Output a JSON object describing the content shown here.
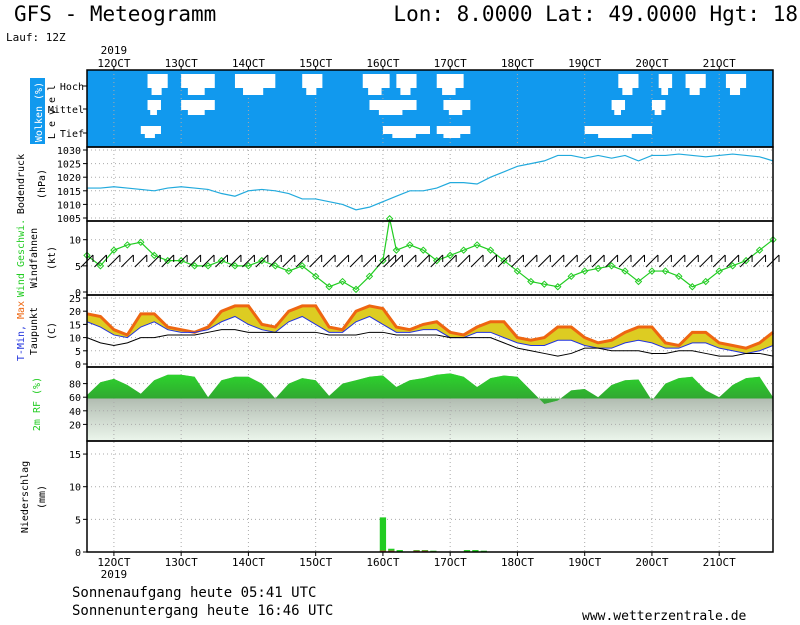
{
  "header": {
    "title": "GFS - Meteogramm",
    "coords": "Lon: 8.0000 Lat: 49.0000 Hgt: 18",
    "run": "Lauf: 12Z"
  },
  "footer": {
    "sunrise": "Sonnenaufgang heute 05:41 UTC",
    "sunset": "Sonnenuntergang heute 16:46 UTC",
    "site": "www.wetterzentrale.de"
  },
  "colors": {
    "cloud_bg": "#1199ee",
    "pressure": "#22aadd",
    "wind": "#22cc22",
    "temp_max": "#ee6611",
    "temp_fill": "#ddcc22",
    "temp_min": "#2233dd",
    "humidity": "#22cc22",
    "precip": "#22cc22",
    "precip_conv": "#dd4444"
  },
  "chart_data": {
    "year_top": "2019",
    "year_bottom": "2019",
    "days": [
      "12OCT",
      "13OCT",
      "14OCT",
      "15OCT",
      "16OCT",
      "17OCT",
      "18OCT",
      "19OCT",
      "20OCT",
      "21OCT"
    ],
    "x_start_day": 11.6,
    "x_end_day": 21.8,
    "panels": [
      {
        "id": "clouds",
        "type": "heatmap",
        "ylabel": "Wolken (%)",
        "level_label": "L e v e l",
        "levels": [
          "Hoch",
          "Mittel",
          "Tief"
        ],
        "clear_segments": {
          "hoch": [
            [
              12.5,
              12.8
            ],
            [
              13.0,
              13.5
            ],
            [
              13.8,
              14.4
            ],
            [
              14.8,
              15.1
            ],
            [
              15.7,
              16.1
            ],
            [
              16.2,
              16.5
            ],
            [
              16.8,
              17.2
            ],
            [
              19.5,
              19.8
            ],
            [
              20.1,
              20.3
            ],
            [
              20.5,
              20.8
            ],
            [
              21.1,
              21.4
            ]
          ],
          "mittel": [
            [
              12.5,
              12.7
            ],
            [
              13.0,
              13.5
            ],
            [
              15.8,
              16.5
            ],
            [
              16.9,
              17.3
            ],
            [
              19.4,
              19.6
            ],
            [
              20.0,
              20.2
            ]
          ],
          "tief": [
            [
              12.4,
              12.7
            ],
            [
              16.0,
              16.7
            ],
            [
              16.8,
              17.3
            ],
            [
              19.0,
              20.0
            ]
          ]
        }
      },
      {
        "id": "pressure",
        "type": "line",
        "ylabel": "Bodendruck",
        "unit": "(hPa)",
        "ylim": [
          1005,
          1030
        ],
        "yticks": [
          1005,
          1010,
          1015,
          1020,
          1025,
          1030
        ],
        "series": [
          {
            "x": [
              11.6,
              11.8,
              12.0,
              12.2,
              12.4,
              12.6,
              12.8,
              13.0,
              13.2,
              13.4,
              13.6,
              13.8,
              14.0,
              14.2,
              14.4,
              14.6,
              14.8,
              15.0,
              15.2,
              15.4,
              15.6,
              15.8,
              16.0,
              16.2,
              16.4,
              16.6,
              16.8,
              17.0,
              17.2,
              17.4,
              17.6,
              17.8,
              18.0,
              18.2,
              18.4,
              18.6,
              18.8,
              19.0,
              19.2,
              19.4,
              19.6,
              19.8,
              20.0,
              20.2,
              20.4,
              20.6,
              20.8,
              21.0,
              21.2,
              21.4,
              21.6,
              21.8
            ],
            "y": [
              1016,
              1016,
              1016.5,
              1016,
              1015.5,
              1015,
              1016,
              1016.5,
              1016,
              1015.5,
              1014,
              1013,
              1015,
              1015.5,
              1015,
              1014,
              1012,
              1012,
              1011,
              1010,
              1008,
              1009,
              1011,
              1013,
              1015,
              1015,
              1016,
              1018,
              1018,
              1017.5,
              1020,
              1022,
              1024,
              1025,
              1026,
              1028,
              1028,
              1027,
              1028,
              1027,
              1028,
              1026,
              1028,
              1028,
              1028.5,
              1028,
              1027.5,
              1028,
              1028.5,
              1028,
              1027.5,
              1026
            ]
          }
        ]
      },
      {
        "id": "wind",
        "type": "line",
        "ylabel": "Wind Geschwi.",
        "sublabel": "Windfahnen",
        "unit": "(kt)",
        "ylim": [
          0,
          13
        ],
        "yticks": [
          0,
          5,
          10
        ],
        "series": [
          {
            "x": [
              11.6,
              11.8,
              12.0,
              12.2,
              12.4,
              12.6,
              12.8,
              13.0,
              13.2,
              13.4,
              13.6,
              13.8,
              14.0,
              14.2,
              14.4,
              14.6,
              14.8,
              15.0,
              15.2,
              15.4,
              15.6,
              15.8,
              16.0,
              16.1,
              16.2,
              16.4,
              16.6,
              16.8,
              17.0,
              17.2,
              17.4,
              17.6,
              17.8,
              18.0,
              18.2,
              18.4,
              18.6,
              18.8,
              19.0,
              19.2,
              19.4,
              19.6,
              19.8,
              20.0,
              20.2,
              20.4,
              20.6,
              20.8,
              21.0,
              21.2,
              21.4,
              21.6,
              21.8
            ],
            "y": [
              7,
              5,
              8,
              9,
              9.5,
              7,
              6,
              6,
              5,
              5,
              6,
              5,
              5,
              6,
              5,
              4,
              5,
              3,
              1,
              2,
              0.5,
              3,
              6,
              14,
              8,
              9,
              8,
              6,
              7,
              8,
              9,
              8,
              6,
              4,
              2,
              1.5,
              1,
              3,
              4,
              4.5,
              5,
              4,
              2,
              4,
              4,
              3,
              1,
              2,
              4,
              5,
              6,
              8,
              10
            ]
          }
        ]
      },
      {
        "id": "temperature",
        "type": "area",
        "ylabel": "T-Min, Max",
        "sublabel": "Taupunkt",
        "unit": "(C)",
        "ylim": [
          0,
          25
        ],
        "yticks": [
          0,
          5,
          10,
          15,
          20,
          25
        ],
        "series": [
          {
            "name": "Max",
            "x": [
              11.6,
              11.8,
              12.0,
              12.2,
              12.4,
              12.6,
              12.8,
              13.0,
              13.2,
              13.4,
              13.6,
              13.8,
              14.0,
              14.2,
              14.4,
              14.6,
              14.8,
              15.0,
              15.2,
              15.4,
              15.6,
              15.8,
              16.0,
              16.2,
              16.4,
              16.6,
              16.8,
              17.0,
              17.2,
              17.4,
              17.6,
              17.8,
              18.0,
              18.2,
              18.4,
              18.6,
              18.8,
              19.0,
              19.2,
              19.4,
              19.6,
              19.8,
              20.0,
              20.2,
              20.4,
              20.6,
              20.8,
              21.0,
              21.2,
              21.4,
              21.6,
              21.8
            ],
            "y": [
              19,
              18,
              13,
              11,
              19,
              19,
              14,
              13,
              12,
              14,
              20,
              22,
              22,
              15,
              14,
              20,
              22,
              22,
              14,
              13,
              20,
              22,
              21,
              14,
              13,
              15,
              16,
              12,
              11,
              14,
              16,
              16,
              10,
              9,
              10,
              14,
              14,
              10,
              8,
              9,
              12,
              14,
              14,
              8,
              7,
              12,
              12,
              8,
              7,
              6,
              8,
              12
            ]
          },
          {
            "name": "Min",
            "x": [
              11.6,
              11.8,
              12.0,
              12.2,
              12.4,
              12.6,
              12.8,
              13.0,
              13.2,
              13.4,
              13.6,
              13.8,
              14.0,
              14.2,
              14.4,
              14.6,
              14.8,
              15.0,
              15.2,
              15.4,
              15.6,
              15.8,
              16.0,
              16.2,
              16.4,
              16.6,
              16.8,
              17.0,
              17.2,
              17.4,
              17.6,
              17.8,
              18.0,
              18.2,
              18.4,
              18.6,
              18.8,
              19.0,
              19.2,
              19.4,
              19.6,
              19.8,
              20.0,
              20.2,
              20.4,
              20.6,
              20.8,
              21.0,
              21.2,
              21.4,
              21.6,
              21.8
            ],
            "y": [
              16,
              14,
              11,
              10,
              14,
              16,
              13,
              12,
              12,
              13,
              16,
              18,
              15,
              13,
              12,
              16,
              18,
              15,
              12,
              12,
              16,
              18,
              15,
              12,
              12,
              13,
              13,
              10,
              10,
              12,
              12,
              10,
              8,
              7,
              7,
              9,
              9,
              7,
              6,
              6,
              8,
              9,
              8,
              6,
              6,
              8,
              8,
              6,
              5,
              4,
              5,
              7
            ]
          },
          {
            "name": "Taupunkt",
            "x": [
              11.6,
              11.8,
              12.0,
              12.2,
              12.4,
              12.6,
              12.8,
              13.0,
              13.2,
              13.4,
              13.6,
              13.8,
              14.0,
              14.2,
              14.4,
              14.6,
              14.8,
              15.0,
              15.2,
              15.4,
              15.6,
              15.8,
              16.0,
              16.2,
              16.4,
              16.6,
              16.8,
              17.0,
              17.2,
              17.4,
              17.6,
              17.8,
              18.0,
              18.2,
              18.4,
              18.6,
              18.8,
              19.0,
              19.2,
              19.4,
              19.6,
              19.8,
              20.0,
              20.2,
              20.4,
              20.6,
              20.8,
              21.0,
              21.2,
              21.4,
              21.6,
              21.8
            ],
            "y": [
              10,
              8,
              7,
              8,
              10,
              10,
              11,
              11,
              11,
              12,
              13,
              13,
              12,
              12,
              12,
              12,
              12,
              12,
              11,
              11,
              11,
              12,
              12,
              11,
              11,
              11,
              11,
              10,
              10,
              10,
              10,
              8,
              6,
              5,
              4,
              3,
              4,
              6,
              6,
              5,
              5,
              5,
              4,
              4,
              5,
              5,
              4,
              3,
              3,
              4,
              4,
              3
            ]
          }
        ]
      },
      {
        "id": "humidity",
        "type": "area",
        "ylabel": "2m RF (%)",
        "ylim": [
          0,
          100
        ],
        "yticks": [
          20,
          40,
          60,
          80
        ],
        "series": [
          {
            "x": [
              11.6,
              11.8,
              12.0,
              12.2,
              12.4,
              12.6,
              12.8,
              13.0,
              13.2,
              13.4,
              13.6,
              13.8,
              14.0,
              14.2,
              14.4,
              14.6,
              14.8,
              15.0,
              15.2,
              15.4,
              15.6,
              15.8,
              16.0,
              16.2,
              16.4,
              16.6,
              16.8,
              17.0,
              17.2,
              17.4,
              17.6,
              17.8,
              18.0,
              18.2,
              18.4,
              18.6,
              18.8,
              19.0,
              19.2,
              19.4,
              19.6,
              19.8,
              20.0,
              20.2,
              20.4,
              20.6,
              20.8,
              21.0,
              21.2,
              21.4,
              21.6,
              21.8
            ],
            "y": [
              63,
              82,
              87,
              78,
              65,
              85,
              93,
              93,
              90,
              60,
              85,
              90,
              90,
              80,
              58,
              80,
              88,
              85,
              62,
              80,
              85,
              90,
              92,
              75,
              85,
              88,
              93,
              95,
              90,
              75,
              88,
              92,
              90,
              70,
              50,
              55,
              70,
              72,
              60,
              78,
              85,
              86,
              55,
              80,
              88,
              90,
              70,
              60,
              78,
              88,
              90,
              60
            ]
          }
        ]
      },
      {
        "id": "precip",
        "type": "bar",
        "ylabel": "Niederschlag",
        "unit": "(mm)",
        "ylim": [
          0,
          17
        ],
        "yticks": [
          0,
          5,
          10,
          15
        ],
        "series": [
          {
            "name": "Niederschlag",
            "x": [
              16.0,
              16.125,
              16.25,
              16.5,
              16.625,
              16.75,
              17.25,
              17.375,
              17.5
            ],
            "y": [
              5.3,
              0.5,
              0.3,
              0.3,
              0.3,
              0.2,
              0.3,
              0.3,
              0.2
            ]
          },
          {
            "name": "Konvektiv",
            "x": [
              16.0,
              16.125,
              16.5,
              16.625,
              16.75,
              17.25
            ],
            "y": [
              0.2,
              0.2,
              0.2,
              0.2,
              0.1,
              0.1
            ]
          }
        ]
      }
    ]
  }
}
